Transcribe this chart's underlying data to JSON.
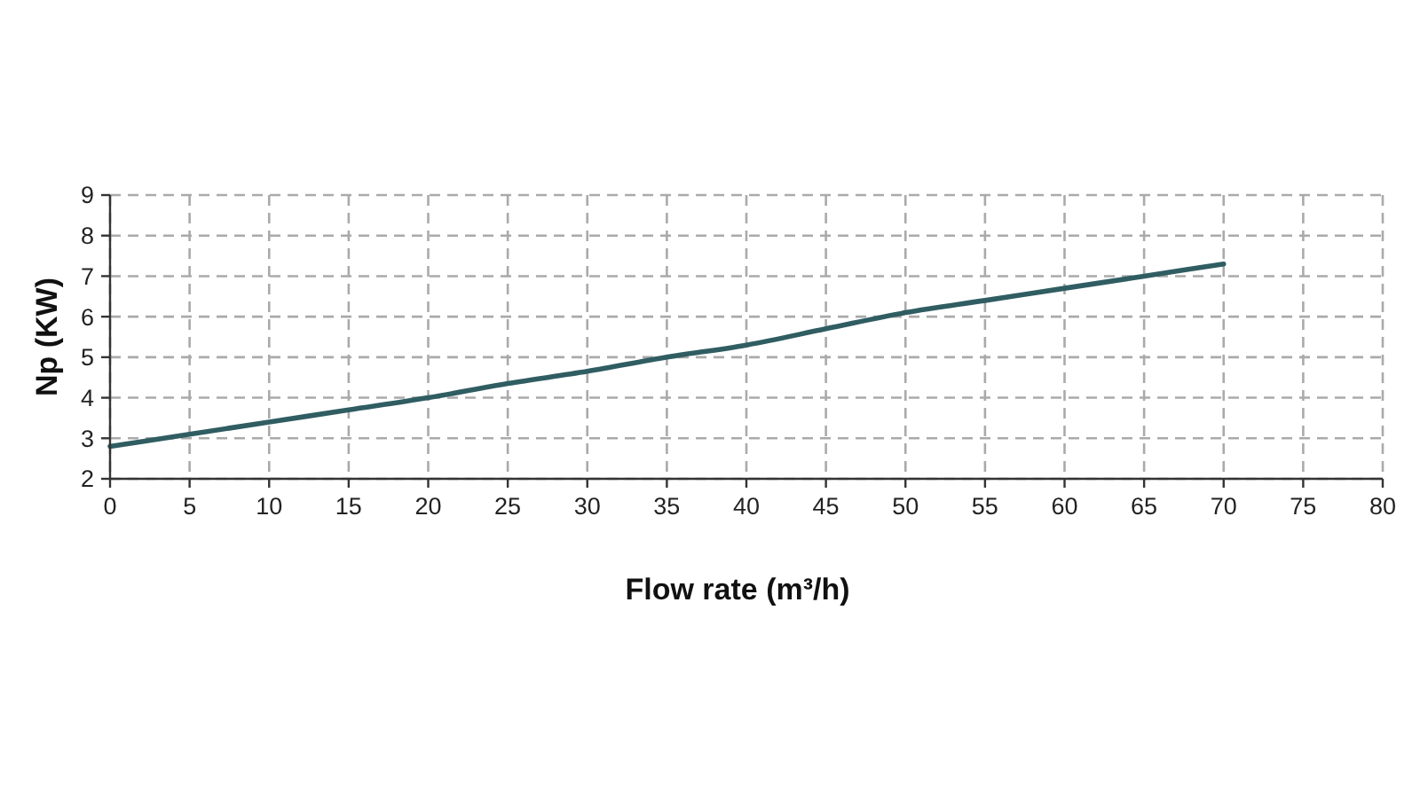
{
  "chart_data": {
    "type": "line",
    "xlabel": "Flow rate (m³/h)",
    "ylabel": "Np (KW)",
    "x": [
      0,
      5,
      10,
      15,
      20,
      25,
      30,
      35,
      40,
      45,
      50,
      55,
      60,
      65,
      70
    ],
    "series": [
      {
        "color": "#2f5d62",
        "values": [
          2.8,
          3.1,
          3.4,
          3.7,
          4.0,
          4.35,
          4.65,
          5.0,
          5.3,
          5.7,
          6.1,
          6.4,
          6.7,
          7.0,
          7.3
        ]
      }
    ],
    "xlim": [
      0,
      80
    ],
    "xticks": [
      0,
      5,
      10,
      15,
      20,
      25,
      30,
      35,
      40,
      45,
      50,
      55,
      60,
      65,
      70,
      75,
      80
    ],
    "ylim": [
      2,
      9
    ],
    "yticks": [
      2,
      3,
      4,
      5,
      6,
      7,
      8,
      9
    ],
    "grid": true,
    "marker": "none",
    "line_style": "solid"
  }
}
